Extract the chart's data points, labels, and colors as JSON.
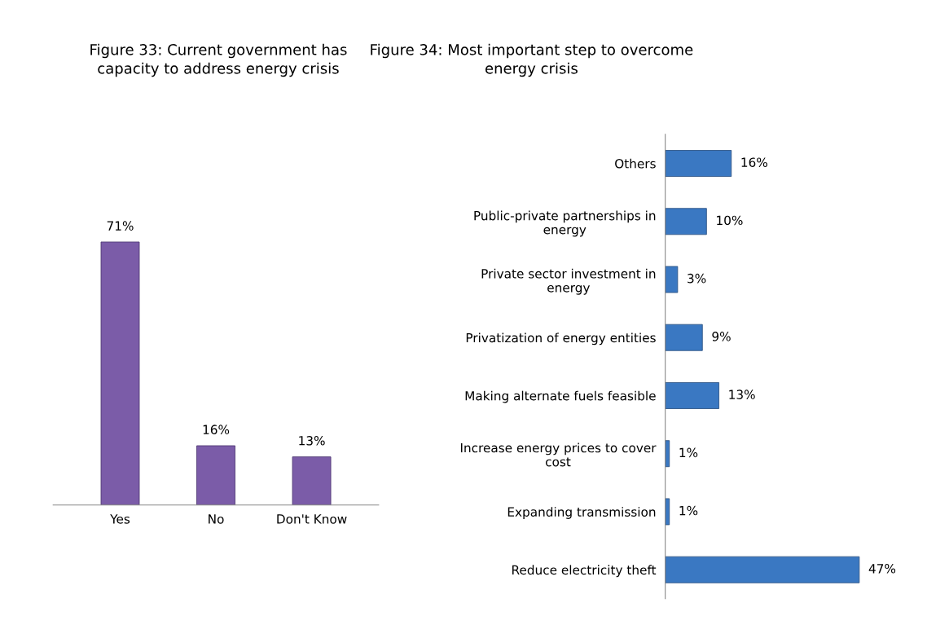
{
  "chart_data": [
    {
      "type": "bar",
      "title": "Figure 33: Current government has\ncapacity to address energy crisis",
      "categories": [
        "Yes",
        "No",
        "Don't Know"
      ],
      "values": [
        71,
        16,
        13
      ],
      "value_labels": [
        "71%",
        "16%",
        "13%"
      ],
      "color": "#7b5ca8",
      "grid": false,
      "legend": false
    },
    {
      "type": "bar",
      "orientation": "horizontal",
      "title": "Figure 34: Most important step to overcome\nenergy crisis",
      "categories": [
        "Others",
        "Public-private partnerships in\nenergy",
        "Private sector investment in\nenergy",
        "Privatization of energy entities",
        "Making alternate fuels feasible",
        "Increase energy prices to cover\ncost",
        "Expanding transmission",
        "Reduce electricity theft"
      ],
      "values": [
        16,
        10,
        3,
        9,
        13,
        1,
        1,
        47
      ],
      "value_labels": [
        "16%",
        "10%",
        "3%",
        "9%",
        "13%",
        "1%",
        "1%",
        "47%"
      ],
      "color": "#3a78c2",
      "grid": false,
      "legend": false
    }
  ]
}
